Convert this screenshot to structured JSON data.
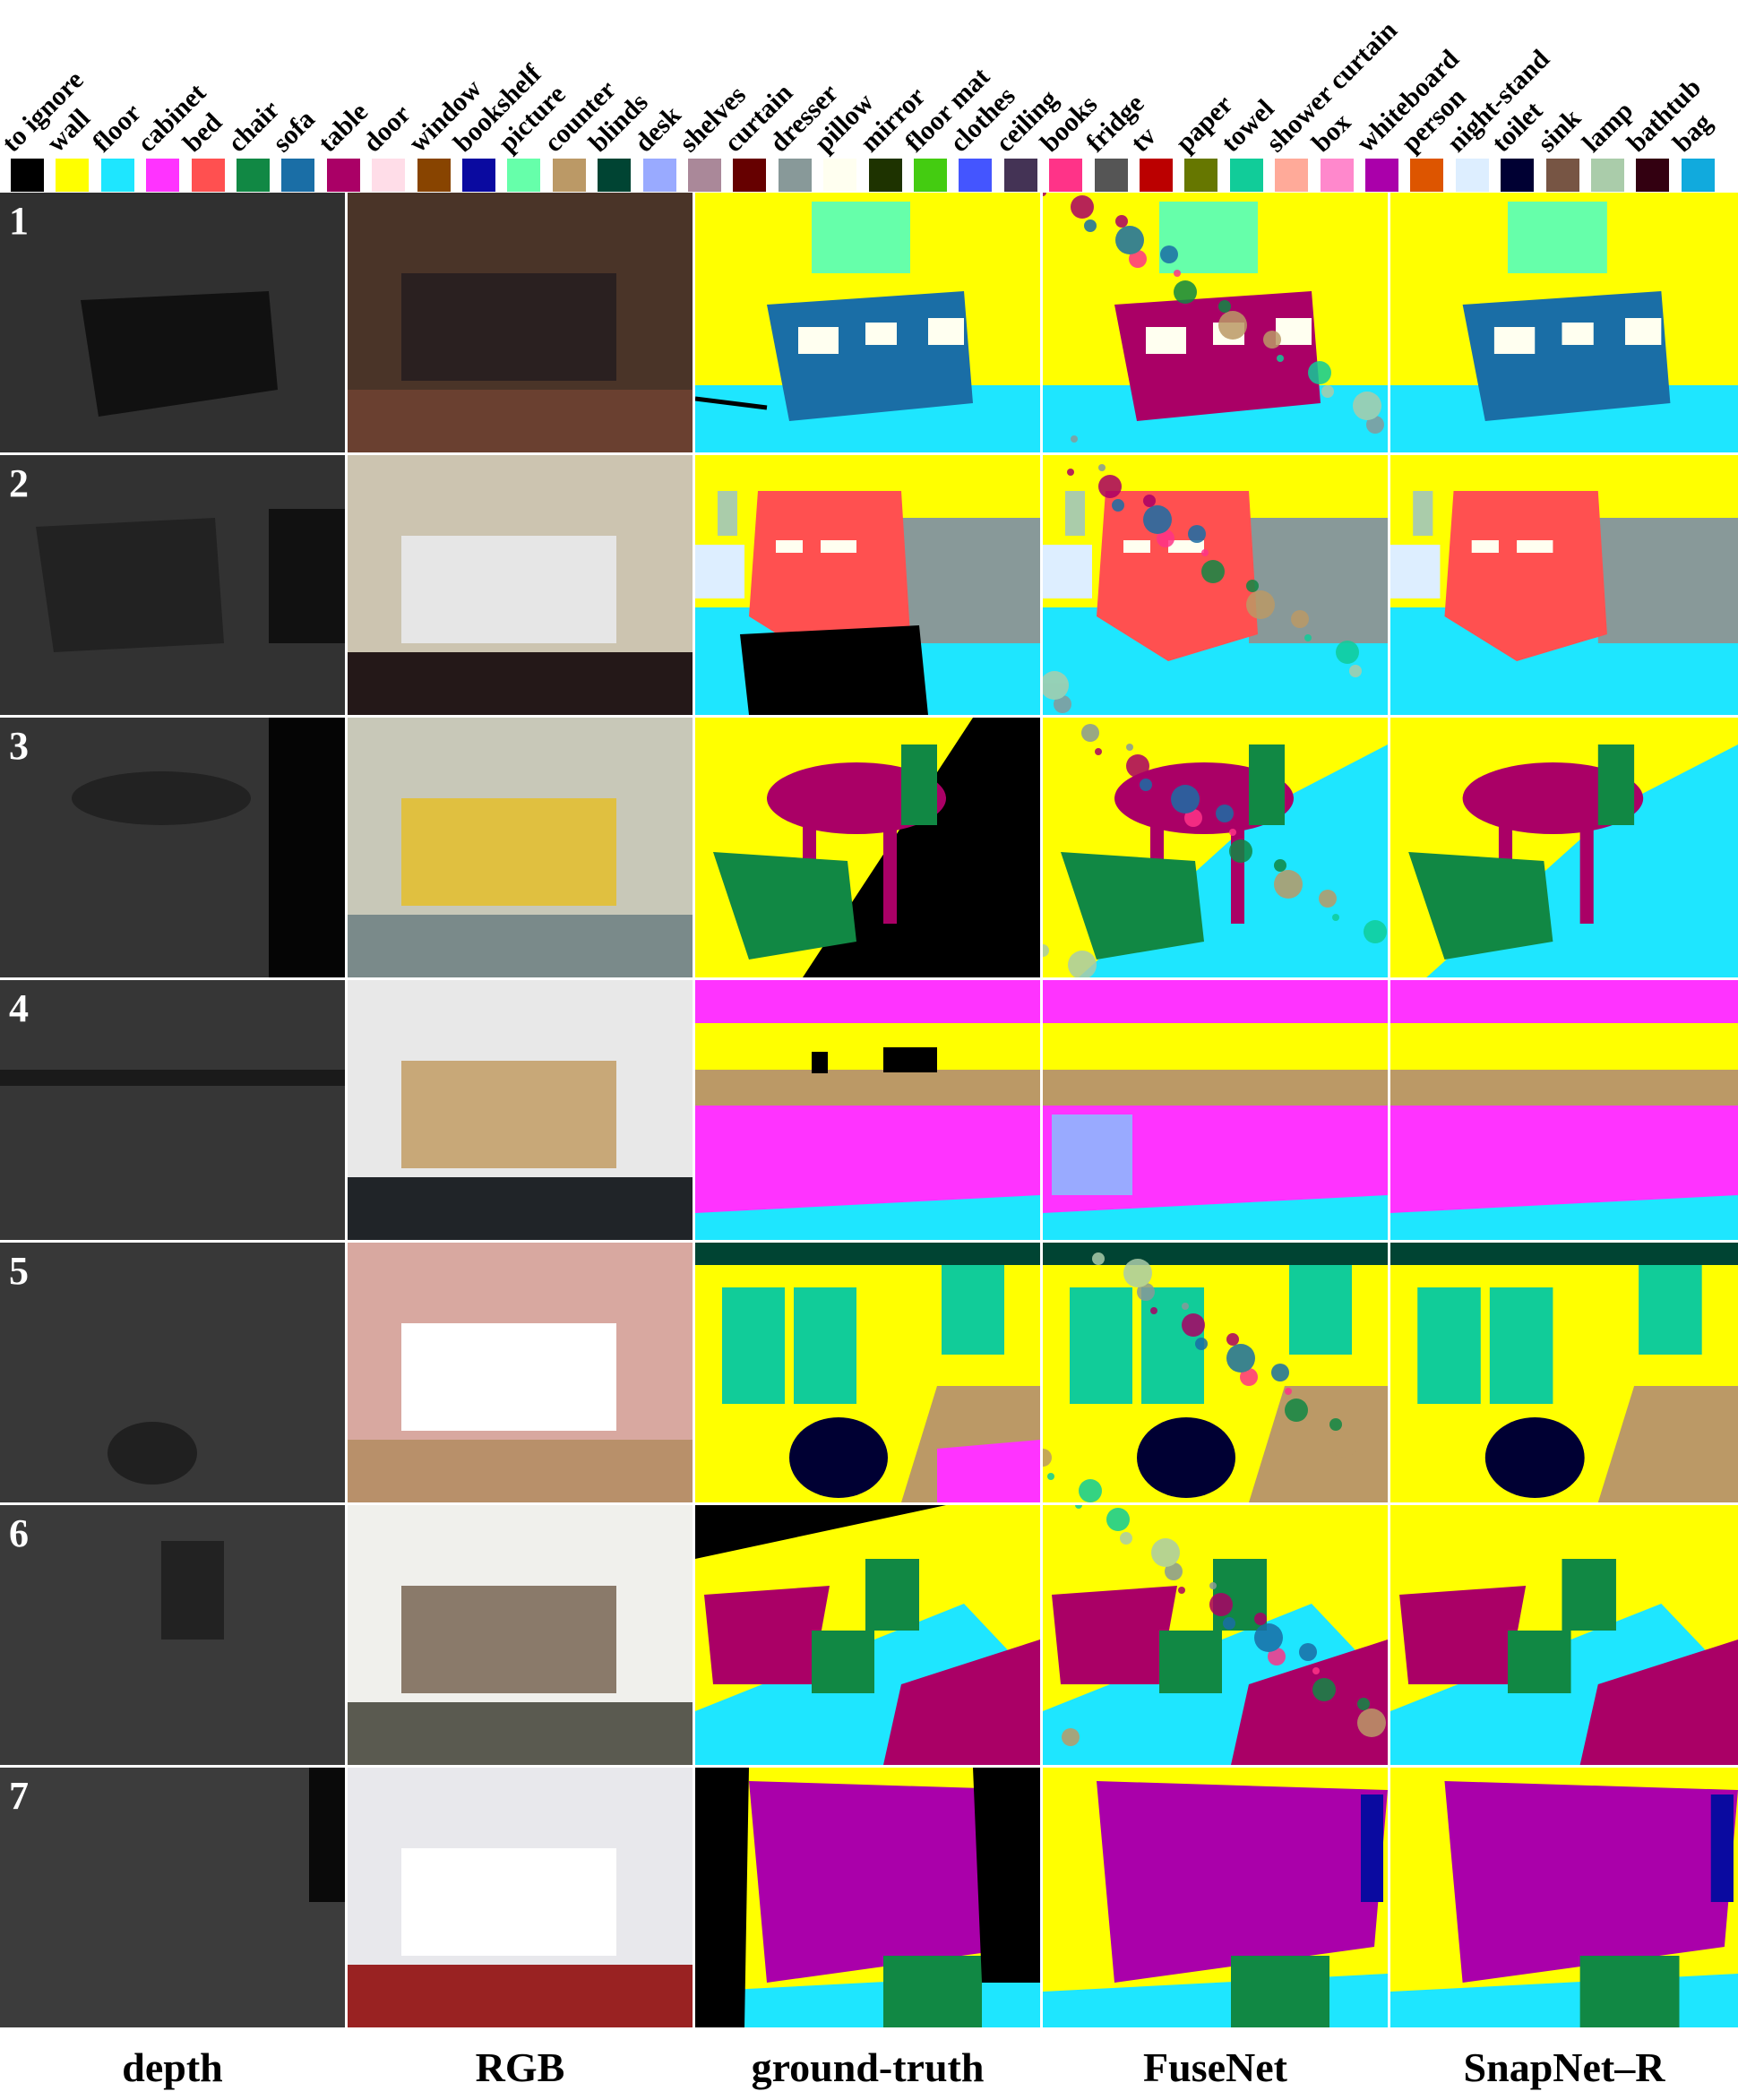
{
  "legend": [
    {
      "label": "to ignore",
      "color": "#000000"
    },
    {
      "label": "wall",
      "color": "#ffff00"
    },
    {
      "label": "floor",
      "color": "#1ee6ff"
    },
    {
      "label": "cabinet",
      "color": "#ff33ff"
    },
    {
      "label": "bed",
      "color": "#ff5050"
    },
    {
      "label": "chair",
      "color": "#118844"
    },
    {
      "label": "sofa",
      "color": "#1a6ea6"
    },
    {
      "label": "table",
      "color": "#aa0066"
    },
    {
      "label": "door",
      "color": "#ffdde8"
    },
    {
      "label": "window",
      "color": "#884400"
    },
    {
      "label": "bookshelf",
      "color": "#0a0aa0"
    },
    {
      "label": "picture",
      "color": "#66ffaa"
    },
    {
      "label": "counter",
      "color": "#bb9966"
    },
    {
      "label": "blinds",
      "color": "#004433"
    },
    {
      "label": "desk",
      "color": "#99aaff"
    },
    {
      "label": "shelves",
      "color": "#aa8899"
    },
    {
      "label": "curtain",
      "color": "#660000"
    },
    {
      "label": "dresser",
      "color": "#889999"
    },
    {
      "label": "pillow",
      "color": "#fffff0"
    },
    {
      "label": "mirror",
      "color": "#1e3300"
    },
    {
      "label": "floor mat",
      "color": "#44cc11"
    },
    {
      "label": "clothes",
      "color": "#4455ff"
    },
    {
      "label": "ceiling",
      "color": "#443355"
    },
    {
      "label": "books",
      "color": "#ff3388"
    },
    {
      "label": "fridge",
      "color": "#555555"
    },
    {
      "label": "tv",
      "color": "#bb0000"
    },
    {
      "label": "paper",
      "color": "#667700"
    },
    {
      "label": "towel",
      "color": "#11cc99"
    },
    {
      "label": "shower curtain",
      "color": "#ffaa99"
    },
    {
      "label": "box",
      "color": "#ff88cc"
    },
    {
      "label": "whiteboard",
      "color": "#aa00aa"
    },
    {
      "label": "person",
      "color": "#dd5500"
    },
    {
      "label": "night-stand",
      "color": "#ddeeff"
    },
    {
      "label": "toilet",
      "color": "#000033"
    },
    {
      "label": "sink",
      "color": "#775544"
    },
    {
      "label": "lamp",
      "color": "#aaccaa"
    },
    {
      "label": "bathtub",
      "color": "#330011"
    },
    {
      "label": "bag",
      "color": "#11aadd"
    }
  ],
  "rows": [
    {
      "number": "1"
    },
    {
      "number": "2"
    },
    {
      "number": "3"
    },
    {
      "number": "4"
    },
    {
      "number": "5"
    },
    {
      "number": "6"
    },
    {
      "number": "7"
    }
  ],
  "columns": [
    "depth",
    "RGB",
    "ground-truth",
    "FuseNet",
    "SnapNet–R"
  ]
}
